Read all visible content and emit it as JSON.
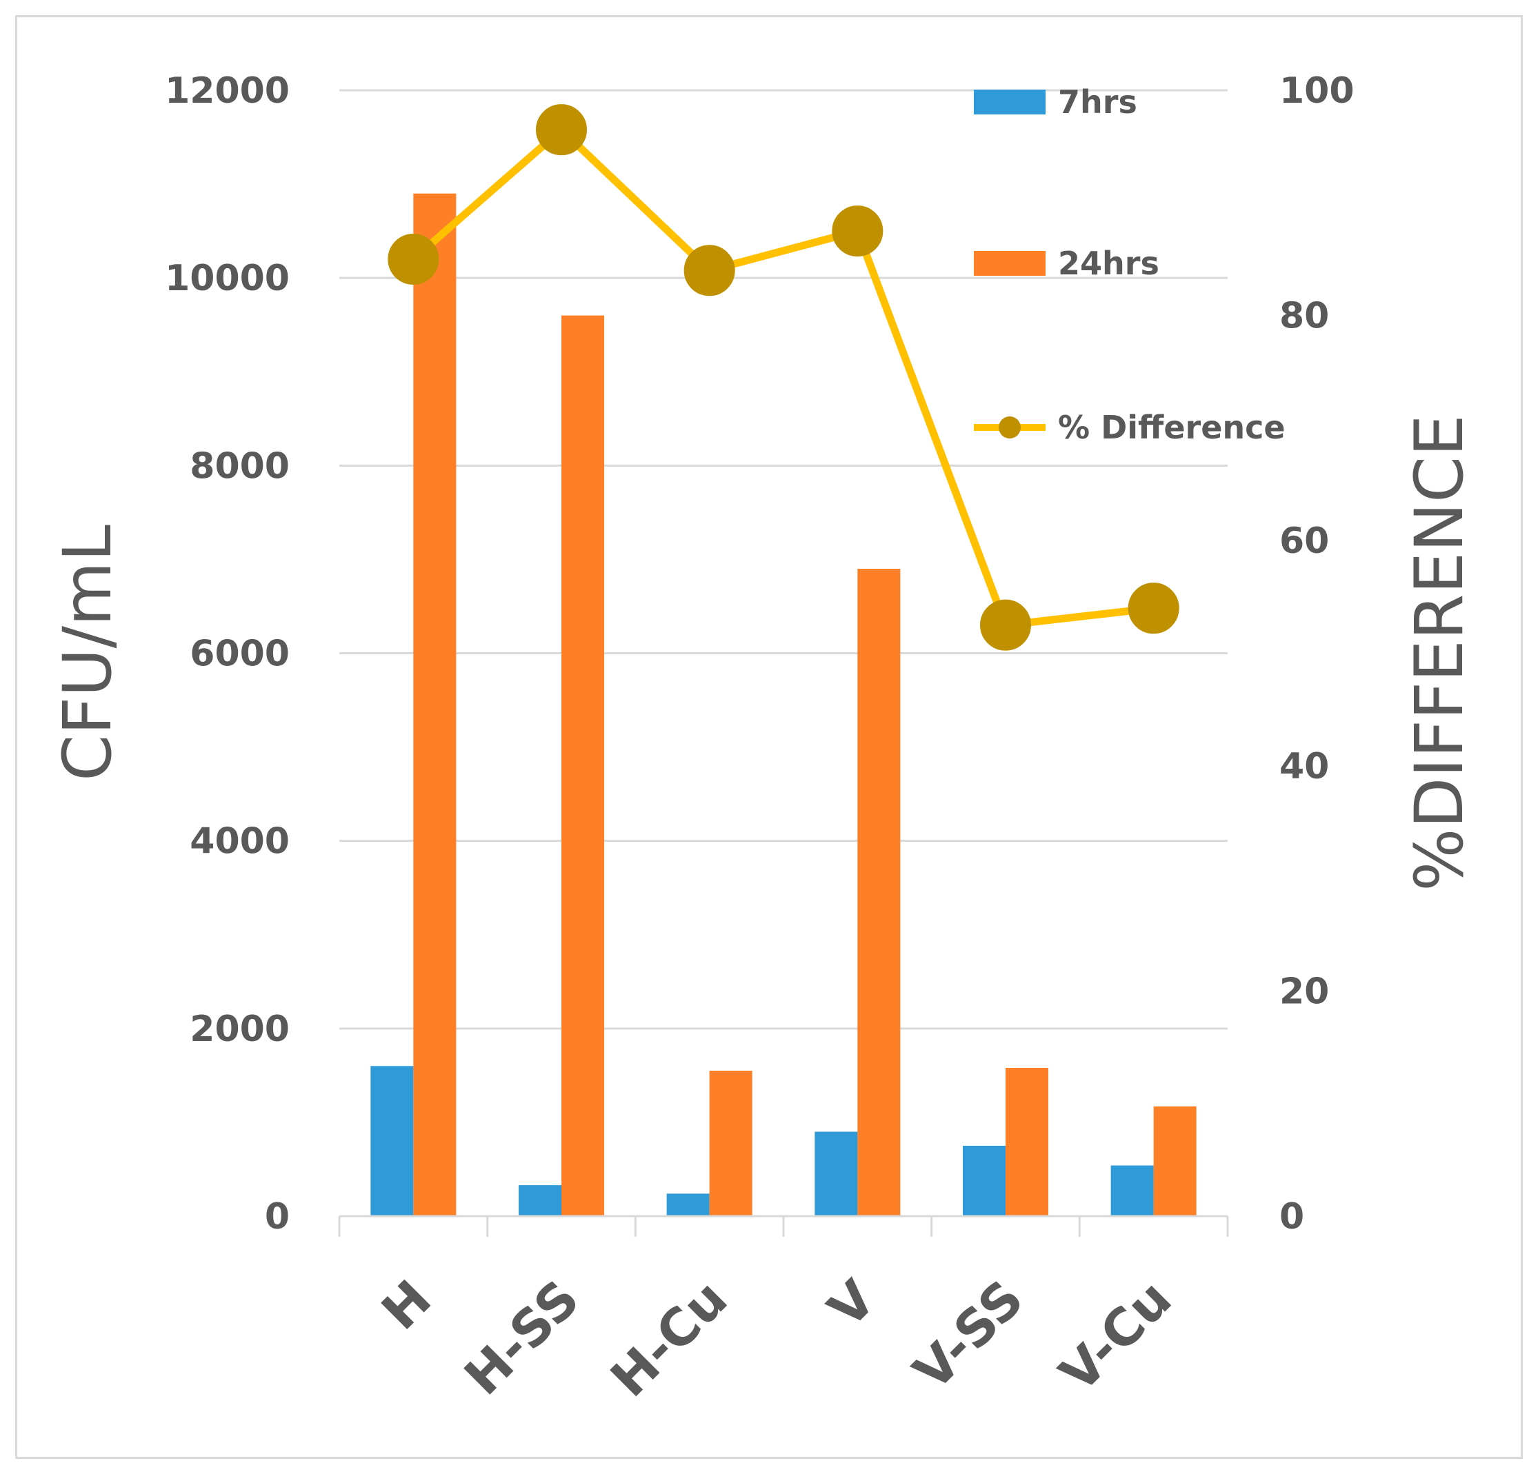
{
  "chart_data": {
    "type": "bar",
    "categories": [
      "H",
      "H-SS",
      "H-Cu",
      "V",
      "V-SS",
      "V-Cu"
    ],
    "series": [
      {
        "name": "7hrs",
        "type": "bar",
        "axis": "left",
        "color": "#2e9ad8",
        "values": [
          1600,
          330,
          240,
          900,
          750,
          540
        ]
      },
      {
        "name": "24hrs",
        "type": "bar",
        "axis": "left",
        "color": "#ff7f27",
        "values": [
          10900,
          9600,
          1550,
          6900,
          1580,
          1170
        ]
      },
      {
        "name": "% Difference",
        "type": "line",
        "axis": "right",
        "color": "#ffc000",
        "marker_color": "#bf9000",
        "values": [
          85,
          96.5,
          84,
          87.5,
          52.5,
          54
        ]
      }
    ],
    "ylabel": "CFU/mL",
    "y2label": "%DIFFERENCE",
    "ylim": [
      0,
      12000
    ],
    "y2lim": [
      0,
      100
    ],
    "yticks": [
      0,
      2000,
      4000,
      6000,
      8000,
      10000,
      12000
    ],
    "y2ticks": [
      0,
      20,
      40,
      60,
      80,
      100
    ],
    "grid": true,
    "legend": "top-right"
  }
}
